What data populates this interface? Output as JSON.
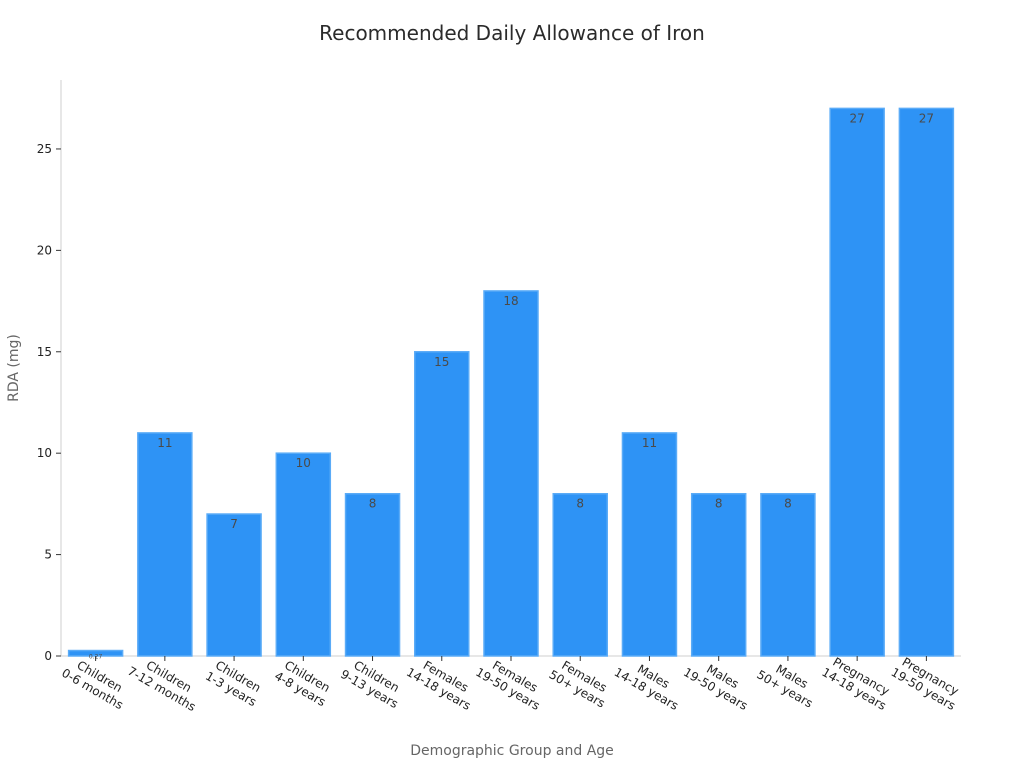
{
  "chart_data": {
    "type": "bar",
    "title": "Recommended Daily Allowance of Iron",
    "xlabel": "Demographic Group and Age",
    "ylabel": "RDA (mg)",
    "ylim": [
      0,
      28.4
    ],
    "yticks": [
      0,
      5,
      10,
      15,
      20,
      25
    ],
    "grid": false,
    "categories": [
      [
        "Children",
        "0-6 months"
      ],
      [
        "Children",
        "7-12 months"
      ],
      [
        "Children",
        "1-3 years"
      ],
      [
        "Children",
        "4-8 years"
      ],
      [
        "Children",
        "9-13 years"
      ],
      [
        "Females",
        "14-18 years"
      ],
      [
        "Females",
        "19-50 years"
      ],
      [
        "Females",
        "50+ years"
      ],
      [
        "Males",
        "14-18 years"
      ],
      [
        "Males",
        "19-50 years"
      ],
      [
        "Males",
        "50+ years"
      ],
      [
        "Pregnancy",
        "14-18 years"
      ],
      [
        "Pregnancy",
        "19-50 years"
      ]
    ],
    "values": [
      0.27,
      11,
      7,
      10,
      8,
      15,
      18,
      8,
      11,
      8,
      8,
      27,
      27
    ],
    "data_labels": [
      "0.27",
      "11",
      "7",
      "10",
      "8",
      "15",
      "18",
      "8",
      "11",
      "8",
      "8",
      "27",
      "27"
    ],
    "colors": {
      "bar": "#2e93f5",
      "bar_edge": "#5aabf7",
      "axis": "#cfcfcf",
      "tick_text": "#222222",
      "label_text": "#666666",
      "data_label_text": "#4a4a4a",
      "title_text": "#2b2b2b"
    }
  }
}
